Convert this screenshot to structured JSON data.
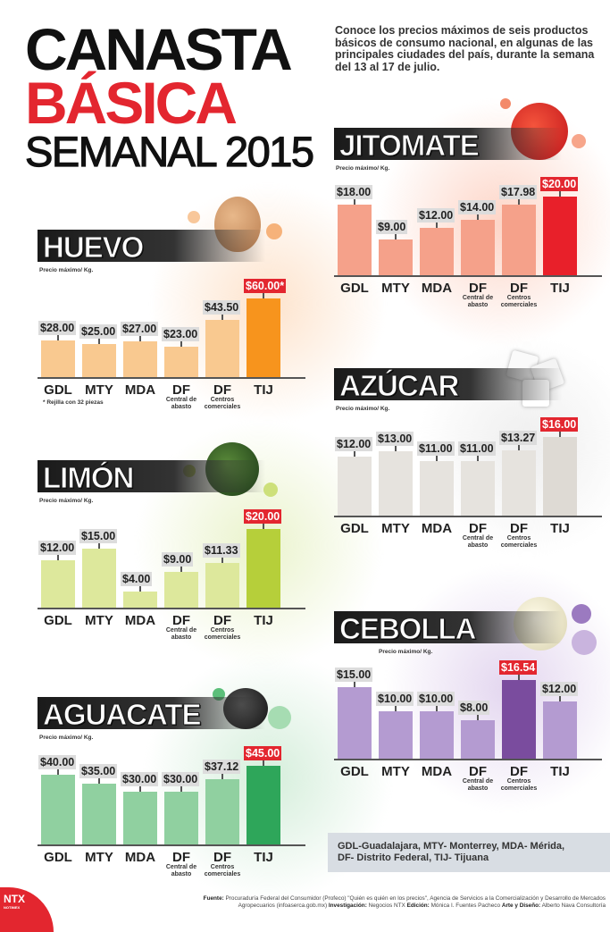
{
  "header": {
    "line1": "CANASTA",
    "line2": "BÁSICA",
    "line3": "SEMANAL 2015"
  },
  "intro": "Conoce los precios máximos de seis productos básicos de consumo nacional, en algunas de las principales ciudades del país, durante la semana del 13 al 17 de julio.",
  "legend": {
    "line1": "GDL-Guadalajara, MTY- Monterrey, MDA- Mérida,",
    "line2": "DF- Distrito Federal, TIJ- Tijuana"
  },
  "footer": {
    "fuente_label": "Fuente:",
    "fuente": "Procuraduría Federal del Consumidor (Profeco) \"Quién es quién en los precios\", Agencia de Servicios a la Comercialización y Desarrollo de Mercados Agropecuarios (infoaserca.gob.mx)",
    "investigacion_label": "Investigación:",
    "investigacion": "Negocios NTX",
    "edicion_label": "Edición:",
    "edicion": "Mónica I. Fuentes Pacheco",
    "arte_label": "Arte y Diseño:",
    "arte": "Alberto Nava Consultoría"
  },
  "logo": {
    "text": "NTX",
    "sub": "NOTIMEX"
  },
  "chart_data": [
    {
      "id": "huevo",
      "type": "bar",
      "title": "HUEVO",
      "unit_label": "Precio máximo/ Kg.",
      "categories": [
        {
          "label": "GDL"
        },
        {
          "label": "MTY"
        },
        {
          "label": "MDA"
        },
        {
          "label": "DF",
          "sub": "Central de abasto"
        },
        {
          "label": "DF",
          "sub": "Centros comerciales"
        },
        {
          "label": "TIJ"
        }
      ],
      "values": [
        28,
        25,
        27,
        23,
        43.5,
        60
      ],
      "value_labels": [
        "$28.00",
        "$25.00",
        "$27.00",
        "$23.00",
        "$43.50",
        "$60.00*"
      ],
      "highlight_index": 5,
      "note": "* Rejilla con 32 piezas",
      "colors": {
        "bar": "#f9c990",
        "highlight": "#f7941d",
        "glow": "#fbd2a8"
      }
    },
    {
      "id": "jitomate",
      "type": "bar",
      "title": "JITOMATE",
      "unit_label": "Precio máximo/ Kg.",
      "categories": [
        {
          "label": "GDL"
        },
        {
          "label": "MTY"
        },
        {
          "label": "MDA"
        },
        {
          "label": "DF",
          "sub": "Central de abasto"
        },
        {
          "label": "DF",
          "sub": "Centros comerciales"
        },
        {
          "label": "TIJ"
        }
      ],
      "values": [
        18,
        9,
        12,
        14,
        17.98,
        20
      ],
      "value_labels": [
        "$18.00",
        "$9.00",
        "$12.00",
        "$14.00",
        "$17.98",
        "$20.00"
      ],
      "highlight_index": 5,
      "colors": {
        "bar": "#f5a18a",
        "highlight": "#e8202a",
        "glow": "#fbc8b8"
      }
    },
    {
      "id": "limon",
      "type": "bar",
      "title": "LIMÓN",
      "unit_label": "Precio máximo/ Kg.",
      "categories": [
        {
          "label": "GDL"
        },
        {
          "label": "MTY"
        },
        {
          "label": "MDA"
        },
        {
          "label": "DF",
          "sub": "Central de abasto"
        },
        {
          "label": "DF",
          "sub": "Centros comerciales"
        },
        {
          "label": "TIJ"
        }
      ],
      "values": [
        12,
        15,
        4,
        9,
        11.33,
        20
      ],
      "value_labels": [
        "$12.00",
        "$15.00",
        "$4.00",
        "$9.00",
        "$11.33",
        "$20.00"
      ],
      "highlight_index": 5,
      "colors": {
        "bar": "#dde89c",
        "highlight": "#b6cf3a",
        "glow": "#e6f0c4"
      }
    },
    {
      "id": "azucar",
      "type": "bar",
      "title": "AZÚCAR",
      "unit_label": "Precio máximo/ Kg.",
      "categories": [
        {
          "label": "GDL"
        },
        {
          "label": "MTY"
        },
        {
          "label": "MDA"
        },
        {
          "label": "DF",
          "sub": "Central de abasto"
        },
        {
          "label": "DF",
          "sub": "Centros comerciales"
        },
        {
          "label": "TIJ"
        }
      ],
      "values": [
        12,
        13,
        11,
        11,
        13.27,
        16
      ],
      "value_labels": [
        "$12.00",
        "$13.00",
        "$11.00",
        "$11.00",
        "$13.27",
        "$16.00"
      ],
      "highlight_index": 5,
      "colors": {
        "bar": "#e6e3de",
        "highlight": "#dedad4",
        "glow": "#ecebe8"
      }
    },
    {
      "id": "cebolla",
      "type": "bar",
      "title": "CEBOLLA",
      "unit_label": "Precio máximo/ Kg.",
      "categories": [
        {
          "label": "GDL"
        },
        {
          "label": "MTY"
        },
        {
          "label": "MDA"
        },
        {
          "label": "DF",
          "sub": "Central de abasto"
        },
        {
          "label": "DF",
          "sub": "Centros comerciales"
        },
        {
          "label": "TIJ"
        }
      ],
      "values": [
        15,
        10,
        10,
        8,
        16.54,
        12
      ],
      "value_labels": [
        "$15.00",
        "$10.00",
        "$10.00",
        "$8.00",
        "$16.54",
        "$12.00"
      ],
      "highlight_index": 4,
      "colors": {
        "bar": "#b49bd1",
        "highlight": "#7a4c9e",
        "glow": "#ddd0ea"
      }
    },
    {
      "id": "aguacate",
      "type": "bar",
      "title": "AGUACATE",
      "unit_label": "Precio máximo/ Kg.",
      "categories": [
        {
          "label": "GDL"
        },
        {
          "label": "MTY"
        },
        {
          "label": "MDA"
        },
        {
          "label": "DF",
          "sub": "Central de abasto"
        },
        {
          "label": "DF",
          "sub": "Centros comerciales"
        },
        {
          "label": "TIJ"
        }
      ],
      "values": [
        40,
        35,
        30,
        30,
        37.12,
        45
      ],
      "value_labels": [
        "$40.00",
        "$35.00",
        "$30.00",
        "$30.00",
        "$37.12",
        "$45.00"
      ],
      "highlight_index": 5,
      "colors": {
        "bar": "#90d0a0",
        "highlight": "#2ea65a",
        "glow": "#c8e8d0"
      }
    }
  ]
}
